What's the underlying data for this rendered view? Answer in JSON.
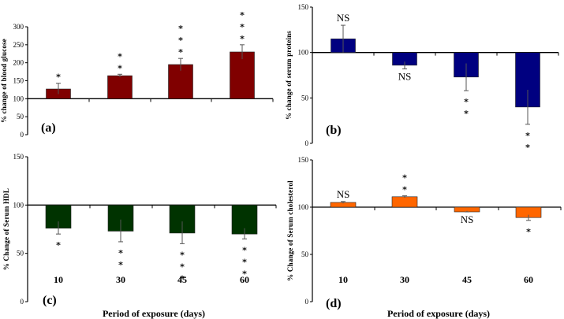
{
  "chart_data": [
    {
      "id": "a",
      "type": "bar",
      "panel_label": "(a)",
      "title": "",
      "xlabel": "",
      "ylabel": "% change of blood glucose",
      "categories": [
        "10",
        "30",
        "45",
        "60"
      ],
      "show_category_labels": false,
      "values": [
        127,
        164,
        195,
        230
      ],
      "error_upper": [
        143,
        168,
        212,
        250
      ],
      "error_lower": [
        113,
        160,
        178,
        210
      ],
      "baseline": 100,
      "ylim": [
        0,
        300
      ],
      "yticks": [
        0,
        50,
        100,
        150,
        200,
        250,
        300
      ],
      "significance": [
        "*",
        "**",
        "***",
        "***"
      ],
      "significance_position": [
        "above",
        "above",
        "above",
        "above"
      ],
      "color": "#800000",
      "grid": false
    },
    {
      "id": "b",
      "type": "bar",
      "panel_label": "(b)",
      "title": "",
      "xlabel": "",
      "ylabel": "% change of serum proteins",
      "categories": [
        "10",
        "30",
        "45",
        "60"
      ],
      "show_category_labels": false,
      "values": [
        115,
        86,
        73,
        40
      ],
      "error_upper": [
        130,
        90,
        88,
        59
      ],
      "error_lower": [
        100,
        82,
        58,
        21
      ],
      "baseline": 100,
      "ylim": [
        0,
        150
      ],
      "yticks": [
        0,
        50,
        100,
        150
      ],
      "significance": [
        "NS",
        "NS",
        "**",
        "**"
      ],
      "significance_position": [
        "above",
        "below",
        "below",
        "below"
      ],
      "color": "#000080",
      "grid": false
    },
    {
      "id": "c",
      "type": "bar",
      "panel_label": "(c)",
      "title": "",
      "xlabel": "Period of exposure (days)",
      "ylabel": "% Change of Serum HDL",
      "categories": [
        "10",
        "30",
        "45",
        "60"
      ],
      "show_category_labels": true,
      "values": [
        76,
        73,
        71,
        70
      ],
      "error_upper": [
        83,
        85,
        83,
        76
      ],
      "error_lower": [
        70,
        62,
        60,
        65
      ],
      "baseline": 100,
      "ylim": [
        0,
        150
      ],
      "yticks": [
        0,
        50,
        100,
        150
      ],
      "significance": [
        "*",
        "**",
        "***",
        "***"
      ],
      "significance_position": [
        "below",
        "below",
        "below",
        "below"
      ],
      "color": "#003300",
      "grid": false
    },
    {
      "id": "d",
      "type": "bar",
      "panel_label": "(d)",
      "title": "",
      "xlabel": "Period of exposure (days)",
      "ylabel": "% Change of Serum cholesterol",
      "categories": [
        "10",
        "30",
        "45",
        "60"
      ],
      "show_category_labels": true,
      "values": [
        105,
        111,
        95,
        89
      ],
      "error_upper": [
        106,
        112,
        96,
        92
      ],
      "error_lower": [
        104,
        110,
        95,
        86
      ],
      "baseline": 100,
      "ylim": [
        0,
        150
      ],
      "yticks": [
        0,
        50,
        100,
        150
      ],
      "significance": [
        "NS",
        "**",
        "NS",
        "*"
      ],
      "significance_position": [
        "above",
        "above",
        "below",
        "below"
      ],
      "color": "#FF6600",
      "grid": false
    }
  ]
}
